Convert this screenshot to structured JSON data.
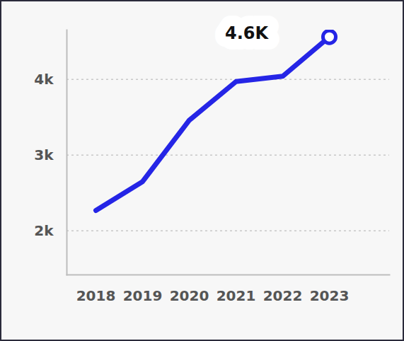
{
  "chart_data": {
    "type": "line",
    "categories": [
      "2018",
      "2019",
      "2020",
      "2021",
      "2022",
      "2023"
    ],
    "values": [
      2270,
      2650,
      3460,
      3970,
      4040,
      4560
    ],
    "value_labels": [
      null,
      null,
      null,
      null,
      null,
      "4.6K"
    ],
    "data_labels": true,
    "color": "#2525e6",
    "ylim": [
      1420,
      4650
    ],
    "yticks": [
      {
        "value": 2000,
        "label": "2k"
      },
      {
        "value": 3000,
        "label": "3k"
      },
      {
        "value": 4000,
        "label": "4k"
      }
    ],
    "grid": true
  }
}
